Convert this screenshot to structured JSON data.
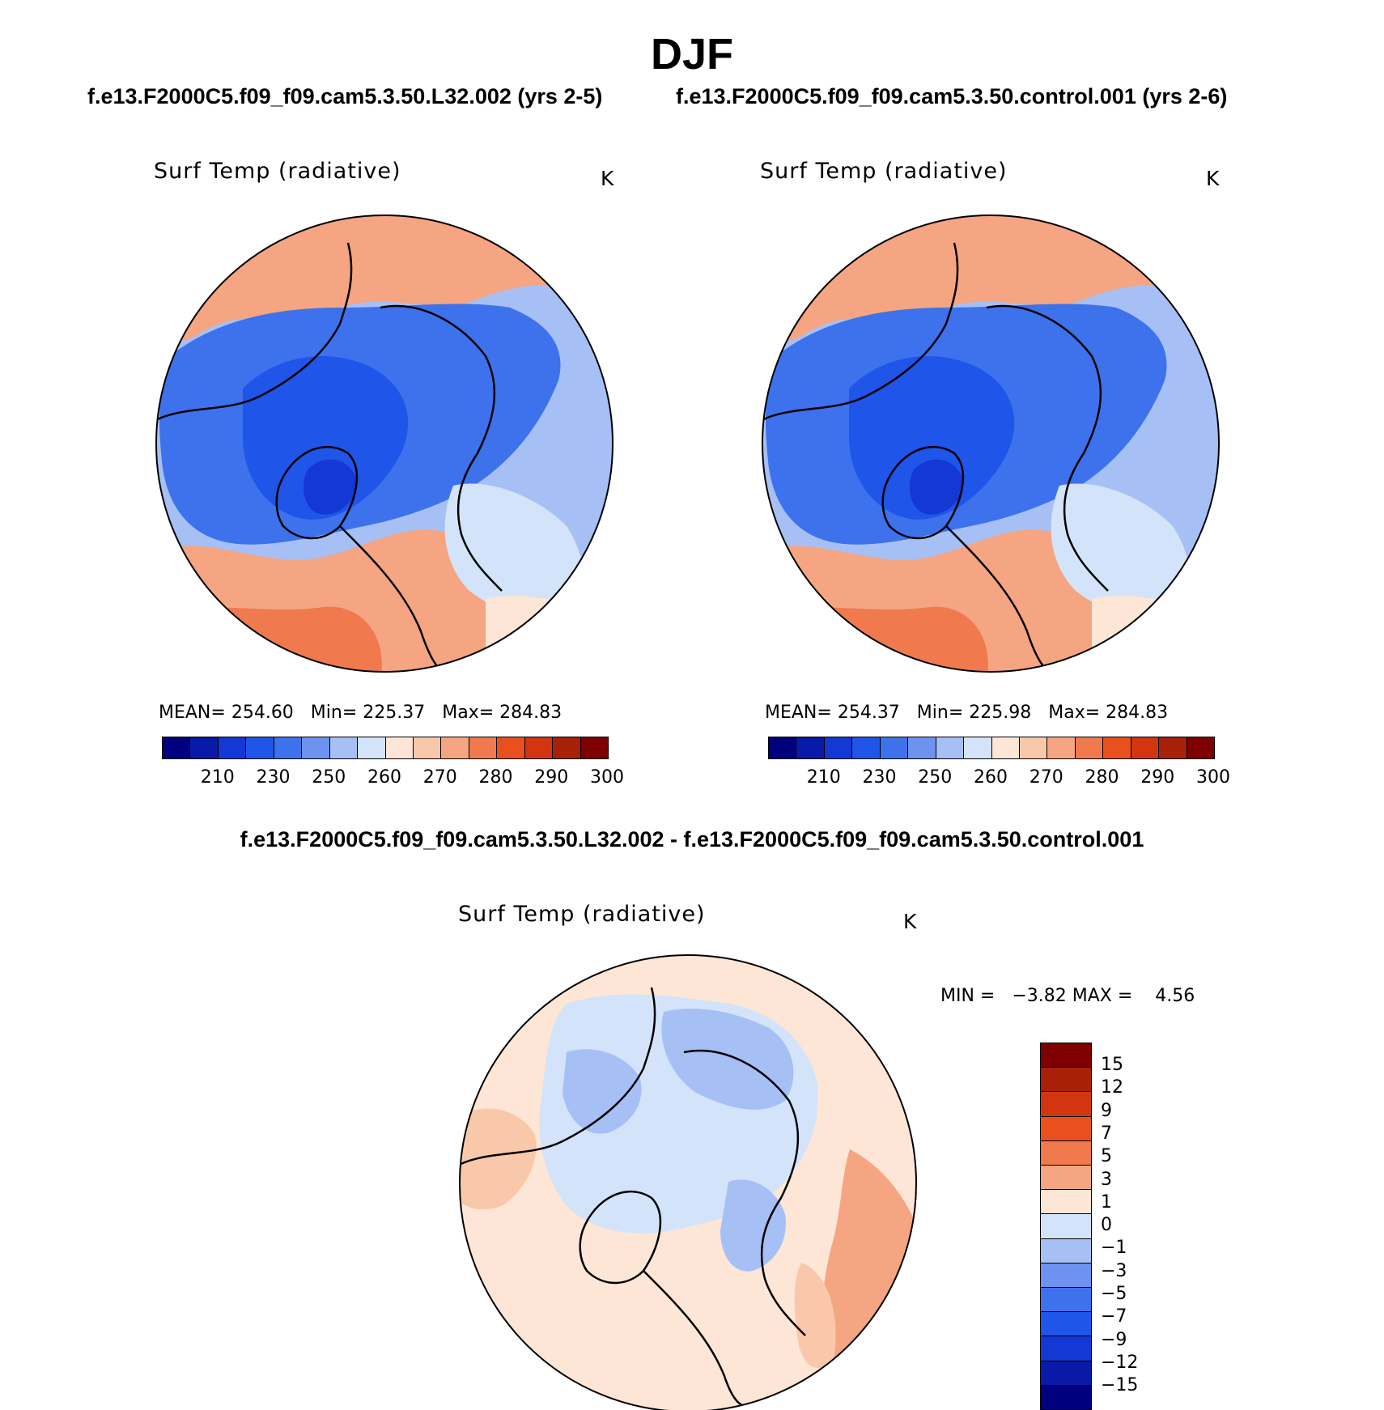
{
  "figure": {
    "season": "DJF",
    "case1_title": "f.e13.F2000C5.f09_f09.cam5.3.50.L32.002 (yrs 2-5)",
    "case2_title": "f.e13.F2000C5.f09_f09.cam5.3.50.control.001 (yrs 2-6)",
    "diff_title": "f.e13.F2000C5.f09_f09.cam5.3.50.L32.002 - f.e13.F2000C5.f09_f09.cam5.3.50.control.001"
  },
  "colors": {
    "abs": [
      "#00007f",
      "#0a1aa8",
      "#1438d4",
      "#1f55e8",
      "#3d72ec",
      "#6d92f0",
      "#a6c0f5",
      "#d3e3fa",
      "#fde6d5",
      "#f9c8aa",
      "#f5a581",
      "#f07a4e",
      "#ea4f1e",
      "#d23510",
      "#a82008",
      "#7e0000"
    ],
    "diff": [
      "#7e0000",
      "#a82008",
      "#d23510",
      "#ea4f1e",
      "#f07a4e",
      "#f5a581",
      "#fde6d5",
      "#d3e3fa",
      "#a6c0f5",
      "#6d92f0",
      "#3d72ec",
      "#1f55e8",
      "#1438d4",
      "#0a1aa8",
      "#00007f"
    ]
  },
  "chart_data": [
    {
      "type": "heatmap",
      "projection": "north-polar-stereographic",
      "title": "Surf Temp (radiative)",
      "units": "K",
      "case": "f.e13.F2000C5.f09_f09.cam5.3.50.L32.002 (yrs 2-5)",
      "stats": {
        "mean_label": "MEAN=",
        "mean": "254.60",
        "min_label": "Min=",
        "min": "225.37",
        "max_label": "Max=",
        "max": "284.83"
      },
      "colorbar_ticks": [
        "210",
        "230",
        "250",
        "260",
        "270",
        "280",
        "290",
        "300"
      ]
    },
    {
      "type": "heatmap",
      "projection": "north-polar-stereographic",
      "title": "Surf Temp (radiative)",
      "units": "K",
      "case": "f.e13.F2000C5.f09_f09.cam5.3.50.control.001 (yrs 2-6)",
      "stats": {
        "mean_label": "MEAN=",
        "mean": "254.37",
        "min_label": "Min=",
        "min": "225.98",
        "max_label": "Max=",
        "max": "284.83"
      },
      "colorbar_ticks": [
        "210",
        "230",
        "250",
        "260",
        "270",
        "280",
        "290",
        "300"
      ]
    },
    {
      "type": "heatmap",
      "projection": "north-polar-stereographic",
      "title": "Surf Temp (radiative)",
      "units": "K",
      "case": "f.e13.F2000C5.f09_f09.cam5.3.50.L32.002 - f.e13.F2000C5.f09_f09.cam5.3.50.control.001",
      "stats": {
        "min_label": "MIN =",
        "min": "−3.82",
        "max_label": "MAX =",
        "max": "4.56"
      },
      "colorbar_ticks": [
        "15",
        "12",
        "9",
        "7",
        "5",
        "3",
        "1",
        "0",
        "−1",
        "−3",
        "−5",
        "−7",
        "−9",
        "−12",
        "−15"
      ]
    }
  ]
}
